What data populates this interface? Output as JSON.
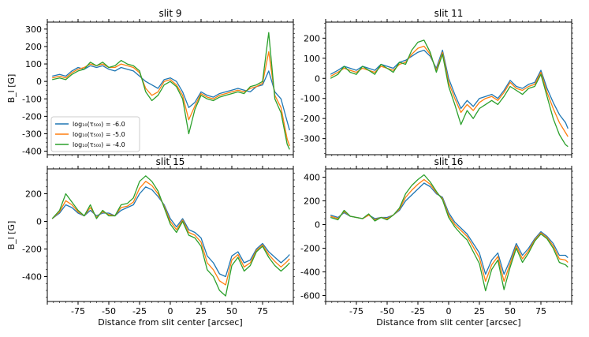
{
  "chart_data": [
    {
      "type": "line",
      "title": "slit 9",
      "xlabel": "",
      "ylabel": "B_l [G]",
      "xlim": [
        -100,
        100
      ],
      "ylim": [
        -420,
        340
      ],
      "xticks": [],
      "yticks": [
        300,
        200,
        100,
        0,
        -100,
        -200,
        -300,
        -400
      ],
      "legend": "lower-left",
      "x": [
        -96,
        -90,
        -85,
        -80,
        -75,
        -70,
        -65,
        -60,
        -55,
        -50,
        -45,
        -40,
        -35,
        -30,
        -25,
        -20,
        -15,
        -10,
        -5,
        0,
        5,
        10,
        15,
        20,
        25,
        30,
        35,
        40,
        45,
        50,
        55,
        60,
        65,
        70,
        75,
        80,
        85,
        90,
        95,
        97
      ],
      "series": [
        {
          "name": "log₁₀(τ₅₀₀) = -6.0",
          "values": [
            30,
            40,
            30,
            60,
            80,
            70,
            90,
            80,
            90,
            70,
            60,
            80,
            70,
            60,
            30,
            0,
            -20,
            -40,
            10,
            20,
            0,
            -60,
            -150,
            -120,
            -60,
            -80,
            -90,
            -70,
            -60,
            -50,
            -40,
            -50,
            -60,
            -30,
            -20,
            60,
            -60,
            -100,
            -230,
            -280
          ]
        },
        {
          "name": "log₁₀(τ₅₀₀) = -5.0",
          "values": [
            20,
            30,
            20,
            50,
            70,
            80,
            100,
            90,
            100,
            80,
            80,
            100,
            90,
            80,
            50,
            -40,
            -80,
            -60,
            0,
            10,
            -20,
            -80,
            -220,
            -140,
            -70,
            -90,
            -100,
            -80,
            -70,
            -60,
            -50,
            -60,
            -40,
            -30,
            -10,
            170,
            -80,
            -150,
            -330,
            -370
          ]
        },
        {
          "name": "log₁₀(τ₅₀₀) = -4.0",
          "values": [
            10,
            20,
            10,
            40,
            60,
            70,
            110,
            90,
            110,
            80,
            90,
            120,
            100,
            90,
            60,
            -60,
            -110,
            -80,
            -20,
            0,
            -30,
            -100,
            -300,
            -160,
            -80,
            -100,
            -110,
            -90,
            -80,
            -70,
            -60,
            -70,
            -30,
            -20,
            0,
            280,
            -100,
            -180,
            -360,
            -390
          ]
        }
      ]
    },
    {
      "type": "line",
      "title": "slit 11",
      "xlabel": "",
      "ylabel": "",
      "xlim": [
        -100,
        100
      ],
      "ylim": [
        -380,
        280
      ],
      "xticks": [],
      "yticks": [
        200,
        100,
        0,
        -100,
        -200,
        -300
      ],
      "legend": "none",
      "x": [
        -96,
        -90,
        -85,
        -80,
        -75,
        -70,
        -65,
        -60,
        -55,
        -50,
        -45,
        -40,
        -35,
        -30,
        -25,
        -20,
        -15,
        -10,
        -5,
        0,
        5,
        10,
        15,
        20,
        25,
        30,
        35,
        40,
        45,
        50,
        55,
        60,
        65,
        70,
        75,
        80,
        85,
        90,
        95,
        97
      ],
      "series": [
        {
          "name": "log₁₀(τ₅₀₀) = -6.0",
          "values": [
            20,
            40,
            60,
            50,
            40,
            60,
            50,
            40,
            70,
            60,
            50,
            80,
            90,
            110,
            130,
            140,
            110,
            50,
            140,
            0,
            -80,
            -150,
            -110,
            -140,
            -100,
            -90,
            -80,
            -100,
            -60,
            -10,
            -40,
            -50,
            -30,
            -20,
            40,
            -50,
            -120,
            -180,
            -220,
            -250
          ]
        },
        {
          "name": "log₁₀(τ₅₀₀) = -5.0",
          "values": [
            10,
            30,
            50,
            40,
            30,
            50,
            40,
            30,
            60,
            50,
            40,
            70,
            80,
            120,
            150,
            160,
            120,
            40,
            130,
            -20,
            -100,
            -170,
            -130,
            -160,
            -120,
            -100,
            -90,
            -110,
            -70,
            -20,
            -50,
            -60,
            -40,
            -30,
            30,
            -70,
            -150,
            -220,
            -270,
            -290
          ]
        },
        {
          "name": "log₁₀(τ₅₀₀) = -4.0",
          "values": [
            0,
            20,
            60,
            30,
            20,
            60,
            40,
            20,
            70,
            50,
            30,
            80,
            70,
            140,
            180,
            190,
            130,
            30,
            120,
            -40,
            -130,
            -230,
            -160,
            -200,
            -150,
            -130,
            -110,
            -130,
            -90,
            -40,
            -60,
            -80,
            -50,
            -40,
            20,
            -90,
            -200,
            -280,
            -330,
            -340
          ]
        }
      ]
    },
    {
      "type": "line",
      "title": "slit 15",
      "xlabel": "Distance from slit center [arcsec]",
      "ylabel": "B_l [G]",
      "xlim": [
        -100,
        100
      ],
      "ylim": [
        -580,
        380
      ],
      "xticks": [
        -75,
        -50,
        -25,
        0,
        25,
        50,
        75
      ],
      "yticks": [
        200,
        0,
        -200,
        -400
      ],
      "legend": "none",
      "x": [
        -96,
        -90,
        -85,
        -80,
        -75,
        -70,
        -65,
        -60,
        -55,
        -50,
        -45,
        -40,
        -35,
        -30,
        -25,
        -20,
        -15,
        -10,
        -5,
        0,
        5,
        10,
        15,
        20,
        25,
        30,
        35,
        40,
        45,
        50,
        55,
        60,
        65,
        70,
        75,
        80,
        85,
        90,
        95,
        97
      ],
      "series": [
        {
          "name": "log₁₀(τ₅₀₀) = -6.0",
          "values": [
            20,
            60,
            120,
            100,
            60,
            40,
            80,
            40,
            60,
            60,
            40,
            80,
            100,
            120,
            200,
            250,
            230,
            180,
            120,
            20,
            -40,
            20,
            -60,
            -80,
            -120,
            -250,
            -300,
            -380,
            -400,
            -250,
            -220,
            -300,
            -280,
            -200,
            -160,
            -220,
            -260,
            -300,
            -260,
            -240
          ]
        },
        {
          "name": "log₁₀(τ₅₀₀) = -5.0",
          "values": [
            20,
            70,
            150,
            120,
            70,
            40,
            100,
            30,
            70,
            50,
            40,
            100,
            110,
            140,
            240,
            290,
            260,
            200,
            110,
            0,
            -60,
            10,
            -80,
            -100,
            -150,
            -300,
            -350,
            -430,
            -460,
            -280,
            -240,
            -330,
            -300,
            -210,
            -170,
            -240,
            -290,
            -330,
            -290,
            -270
          ]
        },
        {
          "name": "log₁₀(τ₅₀₀) = -4.0",
          "values": [
            20,
            80,
            200,
            140,
            80,
            40,
            120,
            20,
            80,
            40,
            40,
            120,
            130,
            170,
            290,
            330,
            290,
            220,
            100,
            -20,
            -80,
            0,
            -100,
            -120,
            -180,
            -350,
            -400,
            -500,
            -540,
            -320,
            -260,
            -360,
            -320,
            -220,
            -180,
            -260,
            -320,
            -360,
            -320,
            -300
          ]
        }
      ]
    },
    {
      "type": "line",
      "title": "slit 16",
      "xlabel": "Distance from slit center [arcsec]",
      "ylabel": "",
      "xlim": [
        -100,
        100
      ],
      "ylim": [
        -650,
        470
      ],
      "xticks": [
        -75,
        -50,
        -25,
        0,
        25,
        50,
        75
      ],
      "yticks": [
        400,
        200,
        0,
        -200,
        -400,
        -600
      ],
      "legend": "none",
      "x": [
        -96,
        -90,
        -85,
        -80,
        -75,
        -70,
        -65,
        -60,
        -55,
        -50,
        -45,
        -40,
        -35,
        -30,
        -25,
        -20,
        -15,
        -10,
        -5,
        0,
        5,
        10,
        15,
        20,
        25,
        30,
        35,
        40,
        45,
        50,
        55,
        60,
        65,
        70,
        75,
        80,
        85,
        90,
        95,
        97
      ],
      "series": [
        {
          "name": "log₁₀(τ₅₀₀) = -6.0",
          "values": [
            80,
            60,
            100,
            70,
            60,
            50,
            80,
            50,
            60,
            60,
            80,
            120,
            200,
            250,
            300,
            350,
            320,
            260,
            230,
            100,
            20,
            -30,
            -80,
            -160,
            -240,
            -420,
            -300,
            -240,
            -420,
            -300,
            -160,
            -260,
            -200,
            -120,
            -60,
            -100,
            -160,
            -260,
            -260,
            -280
          ]
        },
        {
          "name": "log₁₀(τ₅₀₀) = -5.0",
          "values": [
            70,
            50,
            110,
            70,
            60,
            50,
            80,
            40,
            60,
            50,
            80,
            130,
            230,
            290,
            340,
            380,
            340,
            270,
            220,
            80,
            0,
            -50,
            -100,
            -190,
            -280,
            -480,
            -340,
            -270,
            -480,
            -330,
            -180,
            -290,
            -220,
            -130,
            -70,
            -110,
            -180,
            -290,
            -300,
            -320
          ]
        },
        {
          "name": "log₁₀(τ₅₀₀) = -4.0",
          "values": [
            60,
            40,
            120,
            70,
            60,
            50,
            90,
            30,
            60,
            40,
            80,
            140,
            260,
            330,
            380,
            420,
            360,
            280,
            210,
            60,
            -20,
            -80,
            -130,
            -230,
            -330,
            -560,
            -380,
            -300,
            -550,
            -360,
            -200,
            -320,
            -240,
            -140,
            -80,
            -120,
            -200,
            -320,
            -340,
            -360
          ]
        }
      ]
    }
  ],
  "colors": {
    "series": [
      "#1f77b4",
      "#ff7f0e",
      "#2ca02c"
    ],
    "axis": "#000000",
    "background": "#ffffff"
  }
}
